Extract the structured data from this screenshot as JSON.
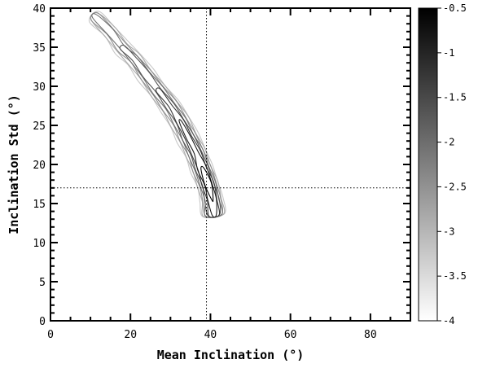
{
  "chart_data": {
    "type": "contour",
    "title": "",
    "xlabel": "Mean Inclination (°)",
    "ylabel": "Inclination Std (°)",
    "xlim": [
      0,
      90
    ],
    "ylim": [
      0,
      40
    ],
    "x_ticks": [
      0,
      20,
      40,
      60,
      80
    ],
    "y_ticks": [
      0,
      5,
      10,
      15,
      20,
      25,
      30,
      35,
      40
    ],
    "grid": false,
    "reference_lines": {
      "x": 39,
      "y": 17,
      "style": "dotted"
    },
    "contour_levels": [
      -4,
      -3.5,
      -3,
      -2.5,
      -2,
      -1.5,
      -1,
      -0.5
    ],
    "density_ridge": [
      {
        "x": 11,
        "y": 39
      },
      {
        "x": 15,
        "y": 37
      },
      {
        "x": 18,
        "y": 35
      },
      {
        "x": 21,
        "y": 33.5
      },
      {
        "x": 24,
        "y": 31.5
      },
      {
        "x": 27,
        "y": 29.5
      },
      {
        "x": 30,
        "y": 27.5
      },
      {
        "x": 32.5,
        "y": 25.5
      },
      {
        "x": 34.5,
        "y": 23.5
      },
      {
        "x": 36.5,
        "y": 21.5
      },
      {
        "x": 38,
        "y": 19.5
      },
      {
        "x": 39.5,
        "y": 17.5
      },
      {
        "x": 40.5,
        "y": 15.5
      },
      {
        "x": 41,
        "y": 13.5
      }
    ],
    "peak": {
      "x": 38.5,
      "y": 17.5,
      "log_density": -0.5
    },
    "colorbar": {
      "min": -4,
      "max": -0.5,
      "ticks": [
        -0.5,
        -1,
        -1.5,
        -2,
        -2.5,
        -3,
        -3.5,
        -4
      ],
      "tick_labels": [
        "-0.5",
        "-1",
        "-1.5",
        "-2",
        "-2.5",
        "-3",
        "-3.5",
        "-4"
      ],
      "color_low": "#ffffff",
      "color_high": "#000000"
    }
  }
}
